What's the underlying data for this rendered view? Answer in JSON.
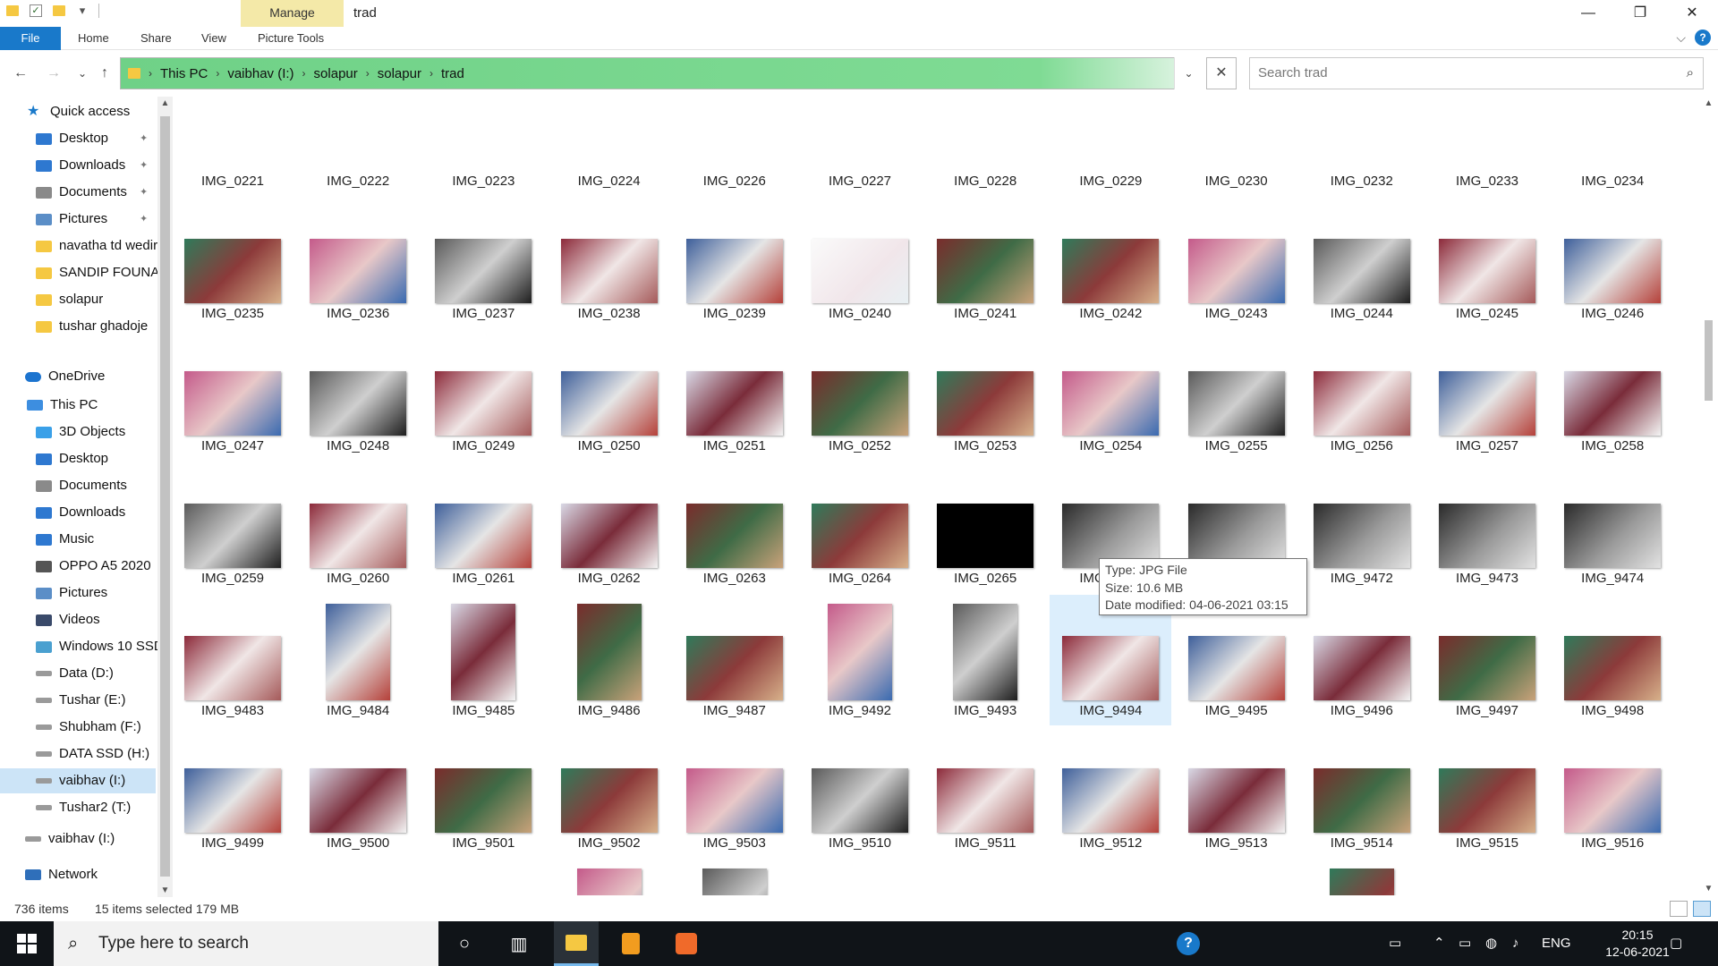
{
  "window": {
    "title": "trad",
    "contextual_tab": "Manage",
    "controls": {
      "minimize": "—",
      "maximize": "❐",
      "close": "✕"
    }
  },
  "ribbon": {
    "tabs": [
      "File",
      "Home",
      "Share",
      "View",
      "Picture Tools"
    ],
    "collapse_icon": "⌵",
    "help": "?"
  },
  "nav": {
    "back": "←",
    "forward": "→",
    "recent": "⌄",
    "up": "↑"
  },
  "address": {
    "crumbs": [
      "This PC",
      "vaibhav  (I:)",
      "solapur",
      "solapur",
      "trad"
    ],
    "separator": "›",
    "dropdown": "⌄",
    "clear": "✕"
  },
  "search": {
    "placeholder": "Search trad",
    "icon": "⌕"
  },
  "sidebar": {
    "quick_access": "Quick access",
    "items": [
      {
        "label": "Desktop",
        "pinned": true
      },
      {
        "label": "Downloads",
        "pinned": true
      },
      {
        "label": "Documents",
        "pinned": true
      },
      {
        "label": "Pictures",
        "pinned": true
      },
      {
        "label": "navatha td wedir",
        "pinned": false
      },
      {
        "label": "SANDIP FOUNAI",
        "pinned": false
      },
      {
        "label": "solapur",
        "pinned": false
      },
      {
        "label": "tushar ghadoje",
        "pinned": false
      }
    ],
    "onedrive": "OneDrive",
    "this_pc": "This PC",
    "pc_items": [
      "3D Objects",
      "Desktop",
      "Documents",
      "Downloads",
      "Music",
      "OPPO A5 2020",
      "Pictures",
      "Videos",
      "Windows 10 SSD",
      "Data (D:)",
      "Tushar (E:)",
      "Shubham (F:)",
      "DATA SSD (H:)",
      "vaibhav  (I:)",
      "Tushar2 (T:)"
    ],
    "drive_root": "vaibhav  (I:)",
    "network": "Network",
    "pin_glyph": "📌"
  },
  "files": {
    "rows": [
      [
        "IMG_0221",
        "IMG_0222",
        "IMG_0223",
        "IMG_0224",
        "IMG_0226",
        "IMG_0227",
        "IMG_0228",
        "IMG_0229",
        "IMG_0230",
        "IMG_0232",
        "IMG_0233",
        "IMG_0234"
      ],
      [
        "IMG_0235",
        "IMG_0236",
        "IMG_0237",
        "IMG_0238",
        "IMG_0239",
        "IMG_0240",
        "IMG_0241",
        "IMG_0242",
        "IMG_0243",
        "IMG_0244",
        "IMG_0245",
        "IMG_0246"
      ],
      [
        "IMG_0247",
        "IMG_0248",
        "IMG_0249",
        "IMG_0250",
        "IMG_0251",
        "IMG_0252",
        "IMG_0253",
        "IMG_0254",
        "IMG_0255",
        "IMG_0256",
        "IMG_0257",
        "IMG_0258"
      ],
      [
        "IMG_0259",
        "IMG_0260",
        "IMG_0261",
        "IMG_0262",
        "IMG_0263",
        "IMG_0264",
        "IMG_0265",
        "IMG_9470",
        "IMG_9471",
        "IMG_9472",
        "IMG_9473",
        "IMG_9474"
      ],
      [
        "IMG_9483",
        "IMG_9484",
        "IMG_9485",
        "IMG_9486",
        "IMG_9487",
        "IMG_9492",
        "IMG_9493",
        "IMG_9494",
        "IMG_9495",
        "IMG_9496",
        "IMG_9497",
        "IMG_9498"
      ],
      [
        "IMG_9499",
        "IMG_9500",
        "IMG_9501",
        "IMG_9502",
        "IMG_9503",
        "IMG_9510",
        "IMG_9511",
        "IMG_9512",
        "IMG_9513",
        "IMG_9514",
        "IMG_9515",
        "IMG_9516"
      ],
      [
        "",
        "",
        "",
        "",
        "",
        "",
        "",
        "",
        "",
        "",
        "",
        ""
      ]
    ],
    "hovered": "IMG_9494"
  },
  "tooltip": {
    "type": "Type: JPG File",
    "size": "Size: 10.6 MB",
    "modified": "Date modified: 04-06-2021 03:15"
  },
  "status": {
    "count": "736 items",
    "selection": "15 items selected  179 MB"
  },
  "taskbar": {
    "search_placeholder": "Type here to search",
    "tray_lang": "ENG",
    "time": "20:15",
    "date": "12-06-2021"
  }
}
